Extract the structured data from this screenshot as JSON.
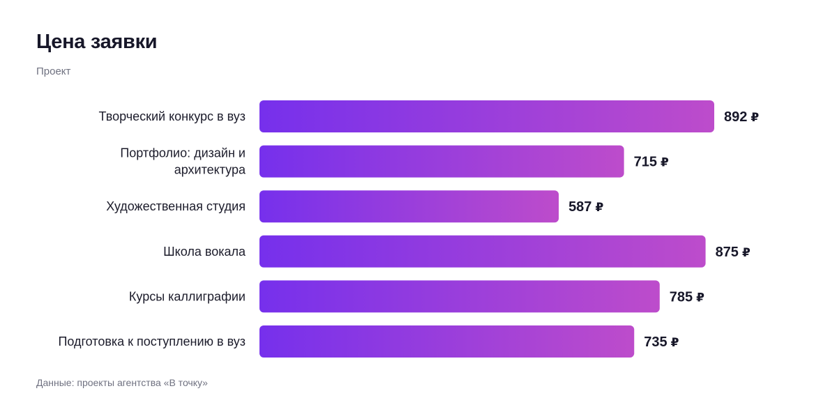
{
  "title": "Цена заявки",
  "subtitle": "Проект",
  "footer": "Данные: проекты агентства «В точку»",
  "colors": {
    "bar_start": "#7630ec",
    "bar_end": "#bd4ccb",
    "text": "#171729",
    "muted": "#6f7180"
  },
  "chart_data": {
    "type": "bar",
    "orientation": "horizontal",
    "categories": [
      "Творческий конкурс в вуз",
      "Портфолио: дизайн и архитектура",
      "Художественная студия",
      "Школа вокала",
      "Курсы каллиграфии",
      "Подготовка к поступлению в вуз"
    ],
    "category_lines": [
      [
        "Творческий конкурс в вуз"
      ],
      [
        "Портфолио: дизайн и",
        "архитектура"
      ],
      [
        "Художественная студия"
      ],
      [
        "Школа вокала"
      ],
      [
        "Курсы каллиграфии"
      ],
      [
        "Подготовка к поступлению в вуз"
      ]
    ],
    "values": [
      892,
      715,
      587,
      875,
      785,
      735
    ],
    "value_suffix": "₽",
    "title": "Цена заявки",
    "subtitle": "Проект",
    "xlabel": "",
    "ylabel": "",
    "xlim": [
      0,
      892
    ],
    "grid": false,
    "legend": "none"
  }
}
